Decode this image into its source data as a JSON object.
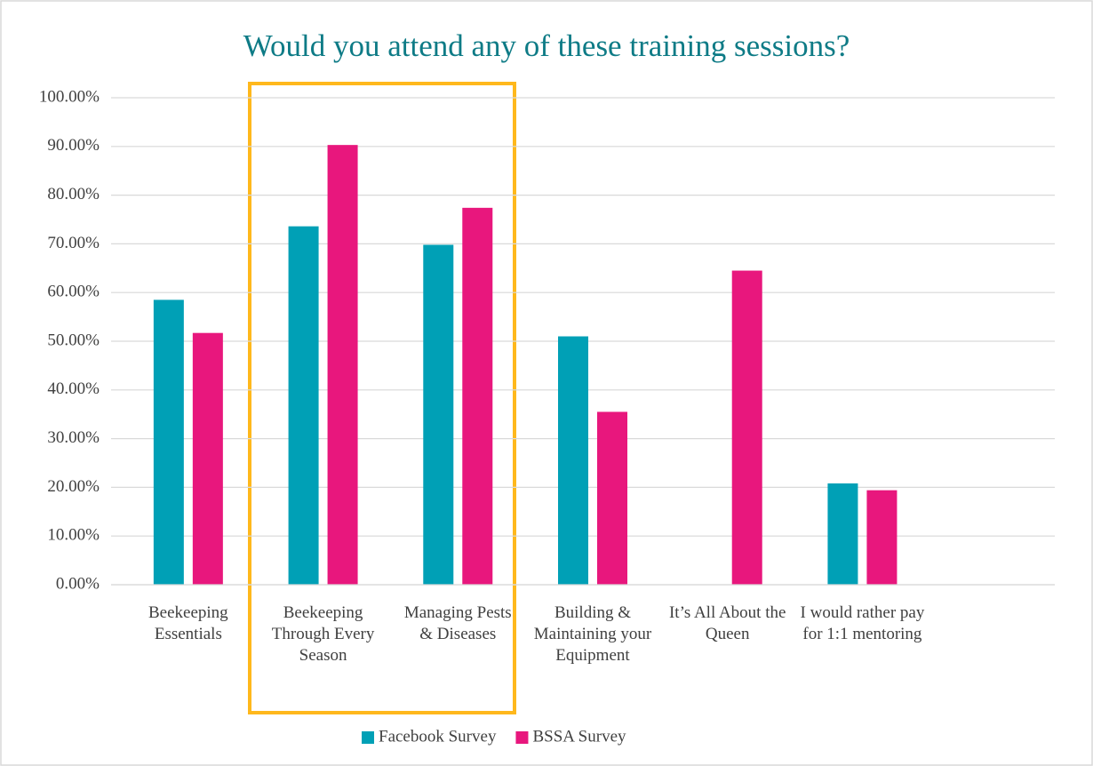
{
  "chart_data": {
    "type": "bar",
    "title": "Would you attend any of these training sessions?",
    "categories": [
      "Beekeeping Essentials",
      "Beekeeping Through Every Season",
      "Managing Pests & Diseases",
      "Building & Maintaining your Equipment",
      "It’s All About the Queen",
      "I would rather pay for 1:1 mentoring",
      null
    ],
    "series": [
      {
        "name": "Facebook Survey",
        "color": "#00a0b6",
        "values": [
          58.5,
          73.6,
          69.8,
          51.0,
          0,
          20.8,
          null
        ]
      },
      {
        "name": "BSSA Survey",
        "color": "#e8177d",
        "values": [
          51.7,
          90.3,
          77.4,
          35.5,
          64.5,
          19.4,
          null
        ]
      }
    ],
    "ylim": [
      0,
      100
    ],
    "yticks": [
      {
        "value": 0,
        "label": "0.00%"
      },
      {
        "value": 10,
        "label": "10.00%"
      },
      {
        "value": 20,
        "label": "20.00%"
      },
      {
        "value": 30,
        "label": "30.00%"
      },
      {
        "value": 40,
        "label": "40.00%"
      },
      {
        "value": 50,
        "label": "50.00%"
      },
      {
        "value": 60,
        "label": "60.00%"
      },
      {
        "value": 70,
        "label": "70.00%"
      },
      {
        "value": 80,
        "label": "80.00%"
      },
      {
        "value": 90,
        "label": "90.00%"
      },
      {
        "value": 100,
        "label": "100.00%"
      }
    ],
    "grid": true,
    "legend": "bottom"
  }
}
